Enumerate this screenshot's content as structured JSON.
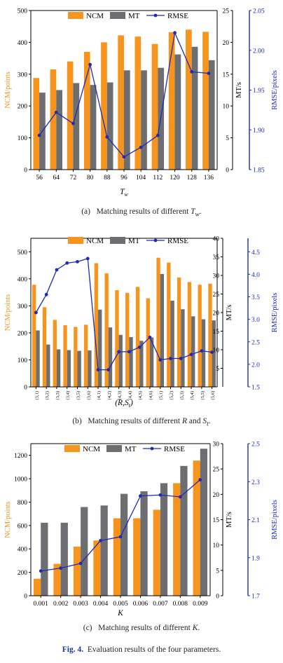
{
  "colors": {
    "ncm": "#f7941d",
    "mt": "#6d6e71",
    "rmse": "#1f2bb5"
  },
  "figure_caption": {
    "label": "Fig. 4.",
    "text": "Evaluation results of the four parameters."
  },
  "chart_data": [
    {
      "id": "a",
      "type": "bar",
      "caption_label": "(a)",
      "caption_text": "Matching results of different",
      "caption_symbol": "T",
      "caption_sub": "w",
      "caption_end": ".",
      "xlabel": "T",
      "xlabel_sub": "w",
      "ylabel": "NCM/points",
      "y2label": "MT/s",
      "y3label": "RMSE/pixels",
      "legend": [
        "NCM",
        "MT",
        "RMSE"
      ],
      "categories": [
        "56",
        "64",
        "72",
        "80",
        "88",
        "96",
        "104",
        "112",
        "120",
        "128",
        "136"
      ],
      "ylim": [
        0,
        500
      ],
      "yticks": [
        0,
        100,
        200,
        300,
        400,
        500
      ],
      "y2lim": [
        0,
        25
      ],
      "y2ticks": [
        0,
        5,
        10,
        15,
        20,
        25
      ],
      "y3lim": [
        1.85,
        2.05
      ],
      "y3ticks": [
        "1.85",
        "1.90",
        "1.95",
        "2.00",
        "2.05"
      ],
      "series": [
        {
          "name": "NCM",
          "axis": "left",
          "values": [
            288,
            315,
            340,
            370,
            400,
            422,
            418,
            395,
            432,
            440,
            433
          ]
        },
        {
          "name": "MT",
          "axis": "mt",
          "values": [
            12.1,
            12.5,
            13.6,
            13.3,
            13.7,
            15.6,
            15.6,
            16.0,
            18.1,
            19.3,
            17.2
          ]
        },
        {
          "name": "RMSE",
          "axis": "rmse",
          "values": [
            1.893,
            1.922,
            1.908,
            1.982,
            1.891,
            1.866,
            1.878,
            1.893,
            2.022,
            1.973,
            1.971
          ]
        }
      ]
    },
    {
      "id": "b",
      "type": "bar",
      "caption_label": "(b)",
      "caption_text": "Matching results of different",
      "caption_symbol": "R",
      "caption_mid": "and",
      "caption_symbol2": "S",
      "caption_sub2": "t",
      "caption_end": ".",
      "xlabel": "(R,S",
      "xlabel_sub": "t",
      "xlabel_end": ")",
      "ylabel": "NCM/points",
      "y2label": "MT/s",
      "y3label": "RMSE/pixels",
      "legend": [
        "NCM",
        "MT",
        "RMSE"
      ],
      "categories": [
        "(3,1)",
        "(3,2)",
        "(3,3)",
        "(3,4)",
        "(3,5)",
        "(3,6)",
        "(4,1)",
        "(4,2)",
        "(4,3)",
        "(4,4)",
        "(4,5)",
        "(4,6)",
        "(5,1)",
        "(5,2)",
        "(5,3)",
        "(5,4)",
        "(5,5)",
        "(5,6)"
      ],
      "ylim": [
        0,
        550
      ],
      "yticks": [
        0,
        100,
        200,
        300,
        400,
        500
      ],
      "y2lim": [
        0,
        40
      ],
      "y2ticks": [
        5,
        10,
        15,
        20,
        25,
        30,
        35,
        40
      ],
      "y3lim": [
        1.5,
        4.8
      ],
      "y3ticks": [
        "1.5",
        "2.0",
        "2.5",
        "3.0",
        "3.5",
        "4.0",
        "4.5"
      ],
      "series": [
        {
          "name": "NCM",
          "axis": "left",
          "values": [
            378,
            295,
            248,
            228,
            222,
            230,
            458,
            420,
            358,
            348,
            370,
            328,
            478,
            460,
            405,
            388,
            378,
            382
          ]
        },
        {
          "name": "MT",
          "axis": "mt",
          "values": [
            15.2,
            11.4,
            10.1,
            9.9,
            9.7,
            9.8,
            20.8,
            16.0,
            14.0,
            13.4,
            12.4,
            13.3,
            30.4,
            23.2,
            20.9,
            19.0,
            18.2,
            17.9
          ]
        },
        {
          "name": "RMSE",
          "axis": "rmse",
          "values": [
            3.15,
            3.55,
            4.1,
            4.25,
            4.28,
            4.35,
            1.88,
            1.88,
            2.28,
            2.28,
            2.38,
            2.6,
            2.1,
            2.13,
            2.13,
            2.22,
            2.3,
            2.27
          ]
        }
      ]
    },
    {
      "id": "c",
      "type": "bar",
      "caption_label": "(c)",
      "caption_text": "Matching results of different",
      "caption_symbol": "K",
      "caption_end": ".",
      "xlabel": "K",
      "ylabel": "NCM/points",
      "y2label": "MT/s",
      "y3label": "RMSE/pixels",
      "legend": [
        "NCM",
        "MT",
        "RMSE"
      ],
      "categories": [
        "0.001",
        "0.002",
        "0.003",
        "0.004",
        "0.005",
        "0.006",
        "0.007",
        "0.008",
        "0.009"
      ],
      "ylim": [
        0,
        1300
      ],
      "yticks": [
        0,
        200,
        400,
        600,
        800,
        1000,
        1200
      ],
      "y2lim": [
        0,
        30
      ],
      "y2ticks": [
        0,
        5,
        10,
        15,
        20,
        25,
        30
      ],
      "y3lim": [
        1.7,
        2.5
      ],
      "y3ticks": [
        "1.7",
        "1.9",
        "2.1",
        "2.3",
        "2.5"
      ],
      "series": [
        {
          "name": "NCM",
          "axis": "left",
          "values": [
            145,
            272,
            420,
            472,
            662,
            662,
            735,
            962,
            1155
          ]
        },
        {
          "name": "MT",
          "axis": "mt",
          "values": [
            14.4,
            14.4,
            17.5,
            17.8,
            20.1,
            20.6,
            22.2,
            25.6,
            29.0
          ]
        },
        {
          "name": "RMSE",
          "axis": "rmse",
          "values": [
            1.83,
            1.845,
            1.87,
            1.99,
            2.01,
            2.225,
            2.23,
            2.22,
            2.31
          ]
        }
      ]
    }
  ]
}
